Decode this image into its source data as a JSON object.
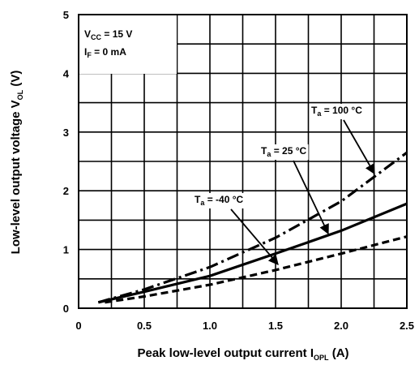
{
  "chart_data": {
    "type": "line",
    "x_label_parts": [
      "Peak low-level output current  I",
      "OPL",
      "  (A)"
    ],
    "y_label_parts": [
      "Low-level output voltage  V",
      "OL",
      "  (V)"
    ],
    "conditions": [
      {
        "main": "V",
        "sub": "CC",
        "rest": " = 15 V"
      },
      {
        "main": "I",
        "sub": "F",
        "rest": " = 0 mA"
      }
    ],
    "xlim": [
      0,
      2.5
    ],
    "ylim": [
      0,
      5
    ],
    "xticks": [
      0,
      0.5,
      {
        "value": 1,
        "label": "1.0"
      },
      1.5,
      {
        "value": 2,
        "label": "2.0"
      },
      2.5
    ],
    "yticks": [
      0,
      1,
      2,
      3,
      4,
      5
    ],
    "x_minor_grid": [
      0.25,
      0.75,
      1.25,
      1.75,
      2.25
    ],
    "y_minor_grid": [
      0.5,
      1.5,
      2.5,
      3.5,
      4.5
    ],
    "grid": true,
    "series": [
      {
        "label_parts": {
          "main": "T",
          "sub": "a",
          "rest": " = 100 °C"
        },
        "color": "#000000",
        "dash": "dashdot",
        "x": [
          0.15,
          0.5,
          1.0,
          1.5,
          2.0,
          2.5
        ],
        "values": [
          0.1,
          0.32,
          0.7,
          1.2,
          1.82,
          2.65
        ]
      },
      {
        "label_parts": {
          "main": "T",
          "sub": "a",
          "rest": " = 25 °C"
        },
        "color": "#000000",
        "dash": "solid",
        "x": [
          0.15,
          0.5,
          1.0,
          1.5,
          2.0,
          2.5
        ],
        "values": [
          0.1,
          0.28,
          0.55,
          0.93,
          1.32,
          1.78
        ]
      },
      {
        "label_parts": {
          "main": "T",
          "sub": "a",
          "rest": " = -40 °C"
        },
        "color": "#000000",
        "dash": "dashed",
        "x": [
          0.2,
          0.5,
          1.0,
          1.5,
          2.0,
          2.5
        ],
        "values": [
          0.1,
          0.2,
          0.4,
          0.65,
          0.93,
          1.22
        ]
      }
    ]
  }
}
